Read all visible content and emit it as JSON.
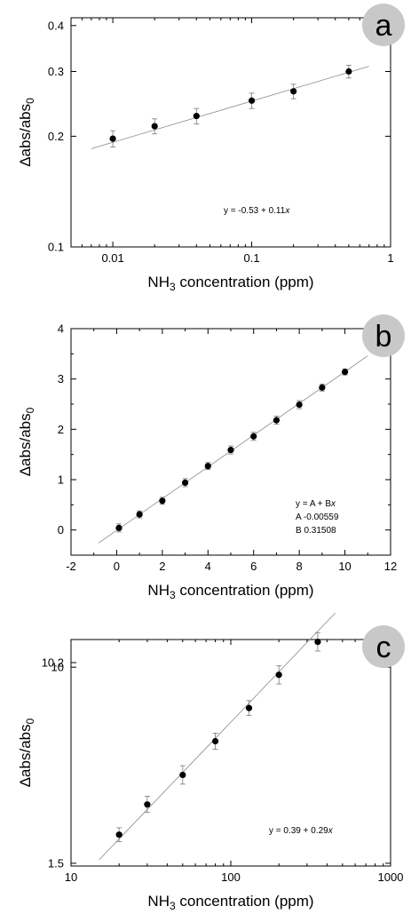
{
  "chart_data": [
    {
      "type": "scatter",
      "panel_label": "a",
      "x_scale": "log",
      "y_scale": "log",
      "xlim": [
        0.005,
        1
      ],
      "ylim": [
        0.1,
        0.42
      ],
      "xticks": [
        0.01,
        0.1,
        1
      ],
      "xtick_labels": [
        "0.01",
        "0.1",
        "1"
      ],
      "yticks": [
        0.1,
        0.2,
        0.3,
        0.4
      ],
      "ytick_labels": [
        "0.1",
        "0.2",
        "0.3",
        "0.4"
      ],
      "xlabel_main": "NH",
      "xlabel_sub": "3",
      "xlabel_rest": " concentration (ppm)",
      "ylabel_main": "Δabs/abs",
      "ylabel_sub": "0",
      "x": [
        0.01,
        0.02,
        0.04,
        0.1,
        0.2,
        0.5
      ],
      "y": [
        0.197,
        0.213,
        0.227,
        0.25,
        0.265,
        0.3
      ],
      "err": [
        0.01,
        0.01,
        0.011,
        0.012,
        0.012,
        0.012
      ],
      "fit_x": [
        0.007,
        0.7
      ],
      "fit_y": [
        0.185,
        0.31
      ],
      "annotation": [
        "y = -0.53 + 0.11x"
      ],
      "grid": false
    },
    {
      "type": "scatter",
      "panel_label": "b",
      "x_scale": "linear",
      "y_scale": "linear",
      "xlim": [
        -2,
        12
      ],
      "ylim": [
        -0.5,
        4
      ],
      "xticks": [
        -2,
        0,
        2,
        4,
        6,
        8,
        10,
        12
      ],
      "xtick_labels": [
        "-2",
        "0",
        "2",
        "4",
        "6",
        "8",
        "10",
        "12"
      ],
      "yticks": [
        0,
        1,
        2,
        3,
        4
      ],
      "ytick_labels": [
        "0",
        "1",
        "2",
        "3",
        "4"
      ],
      "xlabel_main": "NH",
      "xlabel_sub": "3",
      "xlabel_rest": " concentration (ppm)",
      "ylabel_main": "Δabs/abs",
      "ylabel_sub": "0",
      "x": [
        0.1,
        1,
        2,
        3,
        4,
        5,
        6,
        7,
        8,
        9,
        10
      ],
      "y": [
        0.04,
        0.31,
        0.58,
        0.94,
        1.27,
        1.59,
        1.86,
        2.18,
        2.49,
        2.83,
        3.14
      ],
      "err": [
        0.08,
        0.07,
        0.07,
        0.08,
        0.07,
        0.08,
        0.08,
        0.08,
        0.08,
        0.07,
        0.06
      ],
      "fit_x": [
        -0.8,
        11
      ],
      "fit_y": [
        -0.26,
        3.46
      ],
      "annotation": [
        "y = A + Bx",
        "A   -0.00559",
        "B   0.31508"
      ],
      "grid": false
    },
    {
      "type": "scatter",
      "panel_label": "c",
      "x_scale": "log",
      "y_scale": "linear",
      "xlim": [
        10,
        1000
      ],
      "ylim": [
        1.38,
        11.2
      ],
      "xticks": [
        10,
        100,
        1000
      ],
      "xtick_labels": [
        "10",
        "100",
        "1000"
      ],
      "yticks": [
        1.5,
        10,
        10.2
      ],
      "ytick_labels": [
        "1.5",
        "10",
        "10.2"
      ],
      "xlabel_main": "NH",
      "xlabel_sub": "3",
      "xlabel_rest": " concentration (ppm)",
      "ylabel_main": "Δabs/abs",
      "ylabel_sub": "0",
      "x": [
        20,
        30,
        50,
        80,
        130,
        200,
        350
      ],
      "y": [
        2.74,
        4.05,
        5.33,
        6.79,
        8.23,
        9.67,
        11.1
      ],
      "err": [
        0.3,
        0.35,
        0.4,
        0.35,
        0.32,
        0.4,
        0.4
      ],
      "fit_x": [
        15,
        450
      ],
      "fit_y": [
        1.65,
        12.35
      ],
      "annotation": [
        "y = 0.39 + 0.29x"
      ],
      "grid": false
    }
  ]
}
